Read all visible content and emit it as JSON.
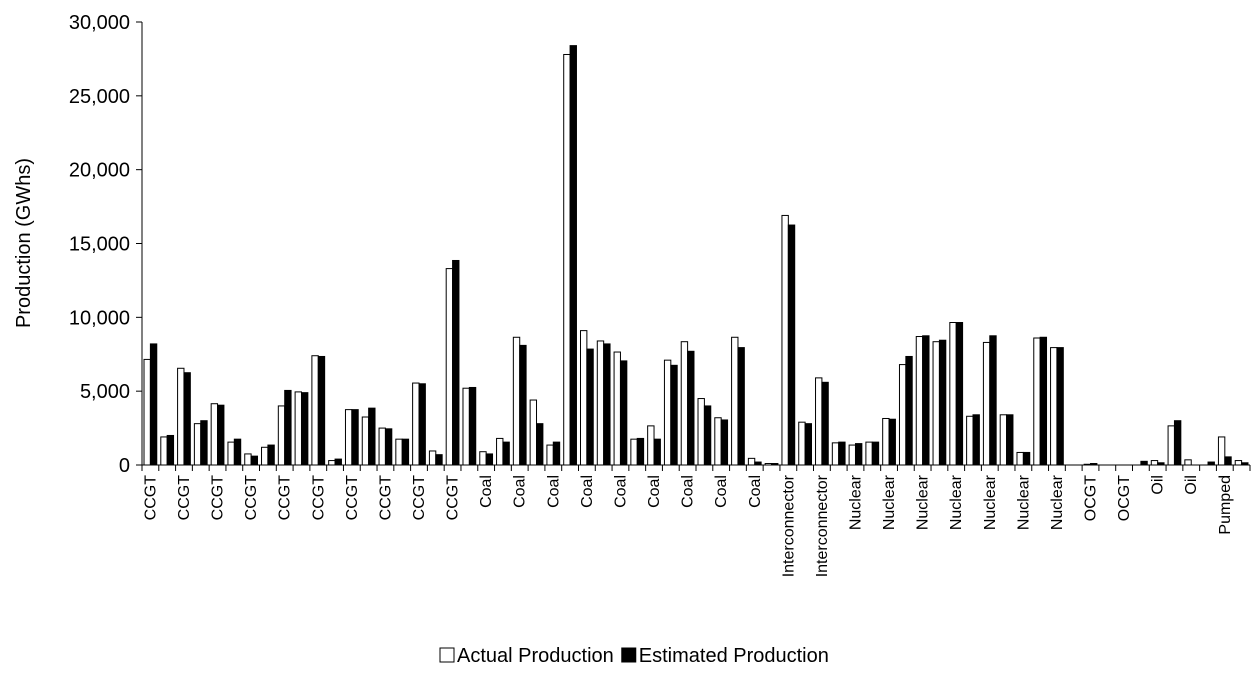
{
  "chart_data": {
    "type": "bar",
    "y_label": "Production (GWhs)",
    "categories": [
      "CCGT",
      null,
      "CCGT",
      null,
      "CCGT",
      null,
      "CCGT",
      null,
      "CCGT",
      null,
      "CCGT",
      null,
      "CCGT",
      null,
      "CCGT",
      null,
      "CCGT",
      null,
      "CCGT",
      null,
      "Coal",
      null,
      "Coal",
      null,
      "Coal",
      null,
      "Coal",
      null,
      "Coal",
      null,
      "Coal",
      null,
      "Coal",
      null,
      "Coal",
      null,
      "Coal",
      null,
      "Interconnector",
      null,
      "Interconnector",
      null,
      "Nuclear",
      null,
      "Nuclear",
      null,
      "Nuclear",
      null,
      "Nuclear",
      null,
      "Nuclear",
      null,
      "Nuclear",
      null,
      "Nuclear",
      null,
      "OCGT",
      null,
      "OCGT",
      null,
      "Oil",
      null,
      "Oil",
      null,
      "Pumped",
      null
    ],
    "series": [
      {
        "name": "Actual Production",
        "color": "#ffffff",
        "values": [
          7150,
          1900,
          6550,
          2800,
          4150,
          1550,
          750,
          1200,
          4000,
          4950,
          7400,
          300,
          3750,
          3250,
          2500,
          1750,
          5550,
          950,
          13300,
          5200,
          900,
          1800,
          8650,
          4400,
          1350,
          27800,
          9100,
          8400,
          7650,
          1750,
          2650,
          7100,
          8350,
          4500,
          3200,
          8650,
          450,
          100,
          16900,
          2900,
          5900,
          1500,
          1350,
          1550,
          3150,
          6800,
          8700,
          8350,
          9650,
          3300,
          8300,
          3400,
          850,
          8600,
          7950,
          0,
          50,
          0,
          0,
          0,
          300,
          2650,
          350,
          0,
          1900,
          300
        ]
      },
      {
        "name": "Estimated Production",
        "color": "#000000",
        "values": [
          8200,
          2000,
          6250,
          3000,
          4050,
          1750,
          600,
          1350,
          5050,
          4900,
          7350,
          400,
          3750,
          3850,
          2450,
          1750,
          5500,
          700,
          13850,
          5250,
          750,
          1550,
          8100,
          2800,
          1550,
          28400,
          7850,
          8200,
          7050,
          1800,
          1750,
          6750,
          7700,
          4000,
          3050,
          7950,
          200,
          100,
          16250,
          2800,
          5600,
          1550,
          1450,
          1550,
          3100,
          7350,
          8750,
          8450,
          9650,
          3400,
          8750,
          3400,
          850,
          8650,
          7950,
          0,
          100,
          0,
          0,
          250,
          150,
          3000,
          0,
          200,
          550,
          150
        ]
      }
    ],
    "ylim": [
      0,
      30000
    ],
    "yticks": [
      {
        "value": 0,
        "label": "0"
      },
      {
        "value": 5000,
        "label": "5,000"
      },
      {
        "value": 10000,
        "label": "10,000"
      },
      {
        "value": 15000,
        "label": "15,000"
      },
      {
        "value": 20000,
        "label": "20,000"
      },
      {
        "value": 25000,
        "label": "25,000"
      },
      {
        "value": 30000,
        "label": "30,000"
      }
    ],
    "legend": "bottom"
  }
}
